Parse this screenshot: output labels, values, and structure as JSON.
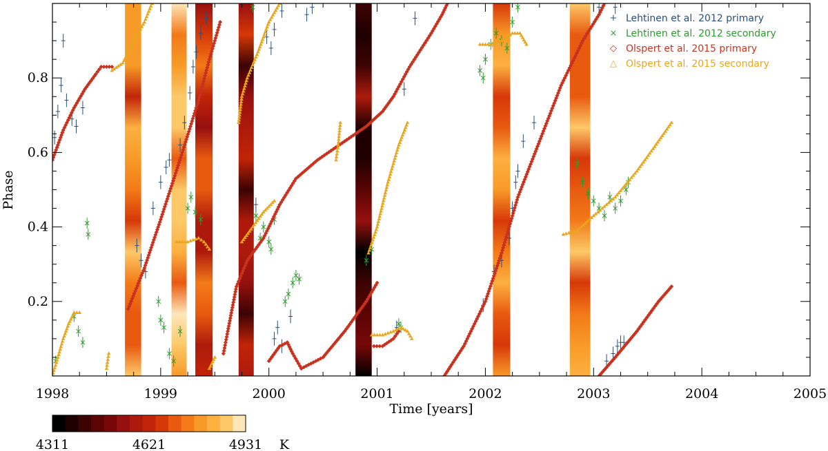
{
  "chart_data": {
    "type": "scatter",
    "xlabel": "Time [years]",
    "ylabel": "Phase",
    "xlim": [
      1998,
      2005
    ],
    "ylim": [
      0,
      1
    ],
    "x_ticks": [
      1998,
      1999,
      2000,
      2001,
      2002,
      2003,
      2004,
      2005
    ],
    "x_tick_labels": [
      "1998",
      "1999",
      "2000",
      "2001",
      "2002",
      "2003",
      "2004",
      "2005"
    ],
    "y_ticks": [
      0.2,
      0.4,
      0.6,
      0.8
    ],
    "y_tick_labels": [
      "0.2",
      "0.4",
      "0.6",
      "0.8"
    ],
    "legend_position": "top-right",
    "series": [
      {
        "name": "Lehtinen et al. 2012 primary",
        "marker": "+",
        "color": "#2a4f7a",
        "points": [
          [
            1998.02,
            0.64
          ],
          [
            1998.05,
            0.71
          ],
          [
            1998.08,
            0.78
          ],
          [
            1998.1,
            0.9
          ],
          [
            1998.13,
            0.74
          ],
          [
            1998.18,
            0.69
          ],
          [
            1998.22,
            0.67
          ],
          [
            1998.28,
            0.72
          ],
          [
            1998.78,
            0.35
          ],
          [
            1998.82,
            0.31
          ],
          [
            1998.86,
            0.28
          ],
          [
            1998.93,
            0.45
          ],
          [
            1999.0,
            0.52
          ],
          [
            1999.05,
            0.56
          ],
          [
            1999.08,
            0.58
          ],
          [
            1999.18,
            0.62
          ],
          [
            1999.22,
            0.68
          ],
          [
            1999.27,
            0.76
          ],
          [
            1999.3,
            0.83
          ],
          [
            1999.33,
            0.87
          ],
          [
            1999.37,
            0.92
          ],
          [
            1999.42,
            0.96
          ],
          [
            1999.88,
            0.46
          ],
          [
            1999.98,
            0.91
          ],
          [
            2000.02,
            0.88
          ],
          [
            2000.05,
            0.93
          ],
          [
            2000.12,
            0.98
          ],
          [
            2000.05,
            0.1
          ],
          [
            2000.08,
            0.13
          ],
          [
            2000.12,
            0.08
          ],
          [
            2000.2,
            0.16
          ],
          [
            2000.35,
            0.97
          ],
          [
            2000.4,
            0.99
          ],
          [
            2001.18,
            0.13
          ],
          [
            2001.25,
            0.77
          ],
          [
            2001.35,
            0.96
          ],
          [
            2001.98,
            0.19
          ],
          [
            2002.08,
            0.28
          ],
          [
            2002.15,
            0.31
          ],
          [
            2002.22,
            0.37
          ],
          [
            2002.25,
            0.45
          ],
          [
            2002.28,
            0.52
          ],
          [
            2002.3,
            0.55
          ],
          [
            2002.35,
            0.63
          ],
          [
            2002.45,
            0.68
          ],
          [
            2003.12,
            0.04
          ],
          [
            2003.18,
            0.06
          ],
          [
            2003.22,
            0.08
          ],
          [
            2003.25,
            0.09
          ],
          [
            2003.28,
            0.09
          ],
          [
            2003.05,
            0.99
          ],
          [
            2003.2,
            0.99
          ]
        ]
      },
      {
        "name": "Lehtinen et al. 2012 secondary",
        "marker": "x",
        "color": "#2e9a2e",
        "points": [
          [
            1998.03,
            0.04
          ],
          [
            1998.2,
            0.16
          ],
          [
            1998.24,
            0.12
          ],
          [
            1998.28,
            0.09
          ],
          [
            1998.32,
            0.41
          ],
          [
            1998.33,
            0.38
          ],
          [
            1998.98,
            0.2
          ],
          [
            1999.0,
            0.15
          ],
          [
            1999.03,
            0.13
          ],
          [
            1999.08,
            0.06
          ],
          [
            1999.12,
            0.04
          ],
          [
            1999.18,
            0.12
          ],
          [
            1999.25,
            0.45
          ],
          [
            1999.28,
            0.48
          ],
          [
            1999.32,
            0.44
          ],
          [
            1999.37,
            0.42
          ],
          [
            1999.85,
            0.99
          ],
          [
            1999.88,
            0.43
          ],
          [
            1999.92,
            0.37
          ],
          [
            1999.95,
            0.4
          ],
          [
            2000.0,
            0.36
          ],
          [
            2000.05,
            0.42
          ],
          [
            2000.02,
            0.34
          ],
          [
            2000.15,
            0.2
          ],
          [
            2000.18,
            0.22
          ],
          [
            2000.22,
            0.25
          ],
          [
            2000.25,
            0.27
          ],
          [
            2000.28,
            0.26
          ],
          [
            2000.9,
            0.31
          ],
          [
            2000.95,
            0.34
          ],
          [
            2001.2,
            0.14
          ],
          [
            2001.22,
            0.13
          ],
          [
            2001.95,
            0.82
          ],
          [
            2001.98,
            0.8
          ],
          [
            2002.0,
            0.85
          ],
          [
            2002.05,
            0.89
          ],
          [
            2002.1,
            0.92
          ],
          [
            2002.15,
            0.9
          ],
          [
            2002.2,
            0.88
          ],
          [
            2002.25,
            0.95
          ],
          [
            2002.3,
            0.99
          ],
          [
            2002.85,
            0.57
          ],
          [
            2002.9,
            0.52
          ],
          [
            2002.95,
            0.49
          ],
          [
            2003.0,
            0.47
          ],
          [
            2003.05,
            0.45
          ],
          [
            2003.1,
            0.43
          ],
          [
            2003.15,
            0.48
          ],
          [
            2003.2,
            0.45
          ],
          [
            2003.25,
            0.47
          ],
          [
            2003.3,
            0.5
          ],
          [
            2003.32,
            0.52
          ]
        ]
      },
      {
        "name": "Olspert et al. 2015 primary",
        "marker": "diamond",
        "color": "#c8321e",
        "segments": [
          [
            [
              1998.0,
              0.58
            ],
            [
              1998.1,
              0.66
            ],
            [
              1998.2,
              0.72
            ],
            [
              1998.3,
              0.77
            ],
            [
              1998.4,
              0.81
            ],
            [
              1998.45,
              0.83
            ],
            [
              1998.55,
              0.83
            ]
          ],
          [
            [
              1998.7,
              0.18
            ],
            [
              1998.85,
              0.29
            ],
            [
              1999.0,
              0.42
            ],
            [
              1999.2,
              0.6
            ],
            [
              1999.35,
              0.74
            ],
            [
              1999.45,
              0.85
            ],
            [
              1999.5,
              0.9
            ],
            [
              1999.55,
              0.95
            ]
          ],
          [
            [
              1999.58,
              0.06
            ],
            [
              1999.62,
              0.12
            ],
            [
              1999.7,
              0.24
            ],
            [
              1999.8,
              0.31
            ],
            [
              1999.95,
              0.37
            ],
            [
              2000.1,
              0.46
            ],
            [
              2000.25,
              0.53
            ],
            [
              2000.45,
              0.58
            ],
            [
              2000.7,
              0.63
            ],
            [
              2000.9,
              0.67
            ],
            [
              2001.05,
              0.71
            ],
            [
              2001.15,
              0.75
            ],
            [
              2001.3,
              0.83
            ],
            [
              2001.5,
              0.92
            ],
            [
              2001.6,
              0.97
            ],
            [
              2001.65,
              1.0
            ]
          ],
          [
            [
              2000.0,
              0.04
            ],
            [
              2000.1,
              0.08
            ],
            [
              2000.17,
              0.09
            ],
            [
              2000.22,
              0.06
            ],
            [
              2000.3,
              0.02
            ]
          ],
          [
            [
              2000.3,
              0.02
            ],
            [
              2000.5,
              0.05
            ],
            [
              2000.7,
              0.12
            ],
            [
              2000.9,
              0.2
            ],
            [
              2001.0,
              0.25
            ]
          ],
          [
            [
              2000.97,
              0.08
            ],
            [
              2001.05,
              0.08
            ],
            [
              2001.15,
              0.1
            ],
            [
              2001.2,
              0.12
            ]
          ],
          [
            [
              2001.62,
              0.0
            ],
            [
              2001.8,
              0.08
            ],
            [
              2002.0,
              0.2
            ],
            [
              2002.15,
              0.33
            ],
            [
              2002.3,
              0.48
            ],
            [
              2002.5,
              0.63
            ],
            [
              2002.7,
              0.78
            ],
            [
              2002.9,
              0.9
            ],
            [
              2003.05,
              0.97
            ],
            [
              2003.1,
              1.0
            ]
          ],
          [
            [
              2003.05,
              0.0
            ],
            [
              2003.2,
              0.05
            ],
            [
              2003.4,
              0.12
            ],
            [
              2003.6,
              0.2
            ],
            [
              2003.72,
              0.24
            ]
          ]
        ]
      },
      {
        "name": "Olspert et al. 2015 secondary",
        "marker": "triangle",
        "color": "#e8a61c",
        "segments": [
          [
            [
              1998.0,
              0.0
            ],
            [
              1998.05,
              0.05
            ],
            [
              1998.1,
              0.1
            ],
            [
              1998.15,
              0.14
            ],
            [
              1998.2,
              0.17
            ],
            [
              1998.25,
              0.17
            ]
          ],
          [
            [
              1998.5,
              0.02
            ],
            [
              1998.52,
              0.06
            ]
          ],
          [
            [
              1998.55,
              0.82
            ],
            [
              1998.65,
              0.84
            ],
            [
              1998.75,
              0.9
            ],
            [
              1998.85,
              0.95
            ],
            [
              1998.92,
              1.0
            ]
          ],
          [
            [
              1999.15,
              0.36
            ],
            [
              1999.25,
              0.36
            ],
            [
              1999.35,
              0.37
            ],
            [
              1999.4,
              0.36
            ],
            [
              1999.45,
              0.34
            ]
          ],
          [
            [
              1999.45,
              0.02
            ],
            [
              1999.5,
              0.05
            ]
          ],
          [
            [
              1999.72,
              0.68
            ],
            [
              1999.75,
              0.75
            ],
            [
              1999.8,
              0.8
            ],
            [
              1999.9,
              0.87
            ],
            [
              2000.0,
              0.95
            ],
            [
              2000.1,
              1.0
            ]
          ],
          [
            [
              1999.75,
              0.36
            ],
            [
              1999.85,
              0.4
            ],
            [
              1999.95,
              0.44
            ],
            [
              2000.05,
              0.47
            ]
          ],
          [
            [
              2000.62,
              0.58
            ],
            [
              2000.64,
              0.62
            ],
            [
              2000.66,
              0.68
            ]
          ],
          [
            [
              2000.92,
              0.33
            ],
            [
              2001.0,
              0.4
            ],
            [
              2001.1,
              0.52
            ],
            [
              2001.2,
              0.62
            ],
            [
              2001.28,
              0.68
            ]
          ],
          [
            [
              2000.95,
              0.11
            ],
            [
              2001.05,
              0.11
            ],
            [
              2001.15,
              0.12
            ],
            [
              2001.22,
              0.13
            ],
            [
              2001.28,
              0.12
            ],
            [
              2001.32,
              0.1
            ]
          ],
          [
            [
              2001.95,
              0.89
            ],
            [
              2002.05,
              0.89
            ],
            [
              2002.15,
              0.9
            ],
            [
              2002.25,
              0.92
            ],
            [
              2002.32,
              0.92
            ],
            [
              2002.38,
              0.89
            ]
          ],
          [
            [
              2002.72,
              0.38
            ],
            [
              2002.85,
              0.39
            ],
            [
              2003.0,
              0.43
            ],
            [
              2003.2,
              0.48
            ],
            [
              2003.4,
              0.55
            ],
            [
              2003.55,
              0.61
            ],
            [
              2003.72,
              0.68
            ]
          ]
        ]
      }
    ],
    "temperature_bands": [
      {
        "x_start": 1998.67,
        "x_end": 1998.82,
        "level": 0.72
      },
      {
        "x_start": 1999.1,
        "x_end": 1999.24,
        "level": 0.85
      },
      {
        "x_start": 1999.32,
        "x_end": 1999.48,
        "level": 0.55
      },
      {
        "x_start": 1999.72,
        "x_end": 1999.86,
        "level": 0.35
      },
      {
        "x_start": 2000.8,
        "x_end": 2000.95,
        "level": 0.18
      },
      {
        "x_start": 2002.07,
        "x_end": 2002.23,
        "level": 0.72
      },
      {
        "x_start": 2002.78,
        "x_end": 2002.97,
        "level": 0.72
      }
    ],
    "colorbar": {
      "tick_labels": [
        "4311",
        "4621",
        "4931"
      ],
      "unit": "K",
      "colors": [
        "#000000",
        "#1e0000",
        "#3c0303",
        "#5a0404",
        "#780808",
        "#961010",
        "#ad1a0c",
        "#c12408",
        "#d63808",
        "#e85a10",
        "#f27a18",
        "#f89a28",
        "#fcb040",
        "#fdc868",
        "#ffe6b8"
      ]
    }
  }
}
